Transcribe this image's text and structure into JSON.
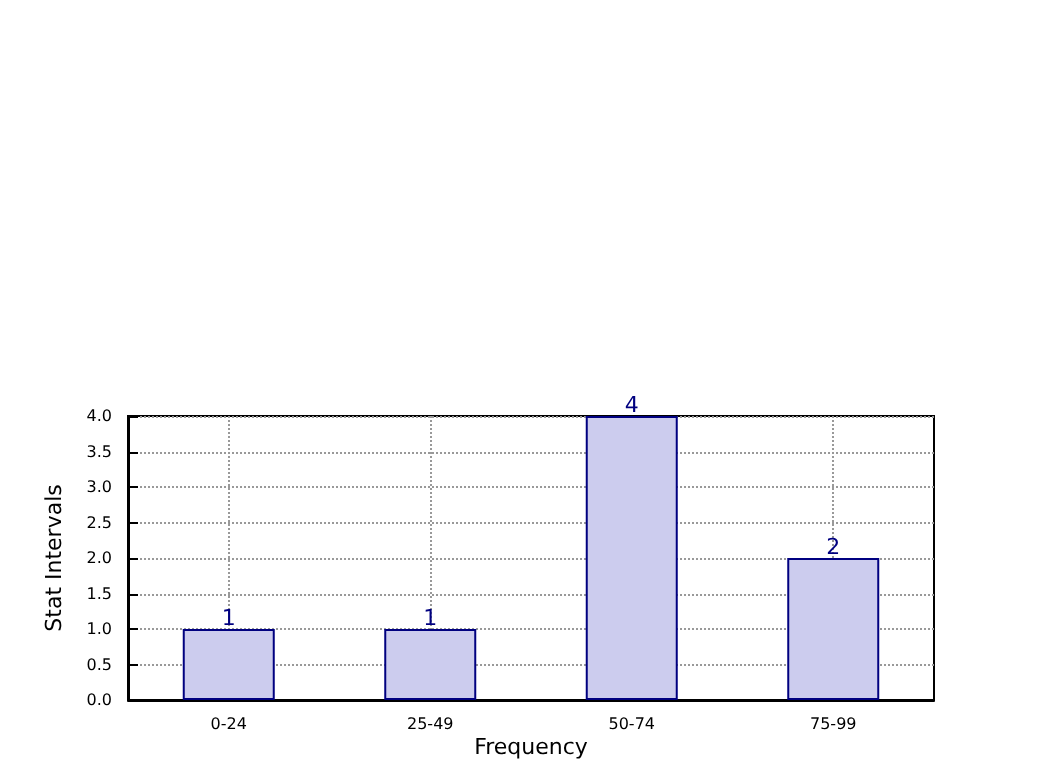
{
  "chart_data": {
    "type": "bar",
    "xlabel": "Frequency",
    "ylabel": "Stat Intervals",
    "categories": [
      "0-24",
      "25-49",
      "50-74",
      "75-99"
    ],
    "values": [
      1,
      1,
      4,
      2
    ],
    "color": "#ccccee",
    "ylim": [
      0,
      4
    ],
    "yticks": [
      {
        "value": 0,
        "label": "0.0"
      },
      {
        "value": 0.5,
        "label": "0.5"
      },
      {
        "value": 1,
        "label": "1.0"
      },
      {
        "value": 1.5,
        "label": "1.5"
      },
      {
        "value": 2,
        "label": "2.0"
      },
      {
        "value": 2.5,
        "label": "2.5"
      },
      {
        "value": 3,
        "label": "3.0"
      },
      {
        "value": 3.5,
        "label": "3.5"
      },
      {
        "value": 4,
        "label": "4.0"
      }
    ],
    "grid": true,
    "data_labels": true
  }
}
